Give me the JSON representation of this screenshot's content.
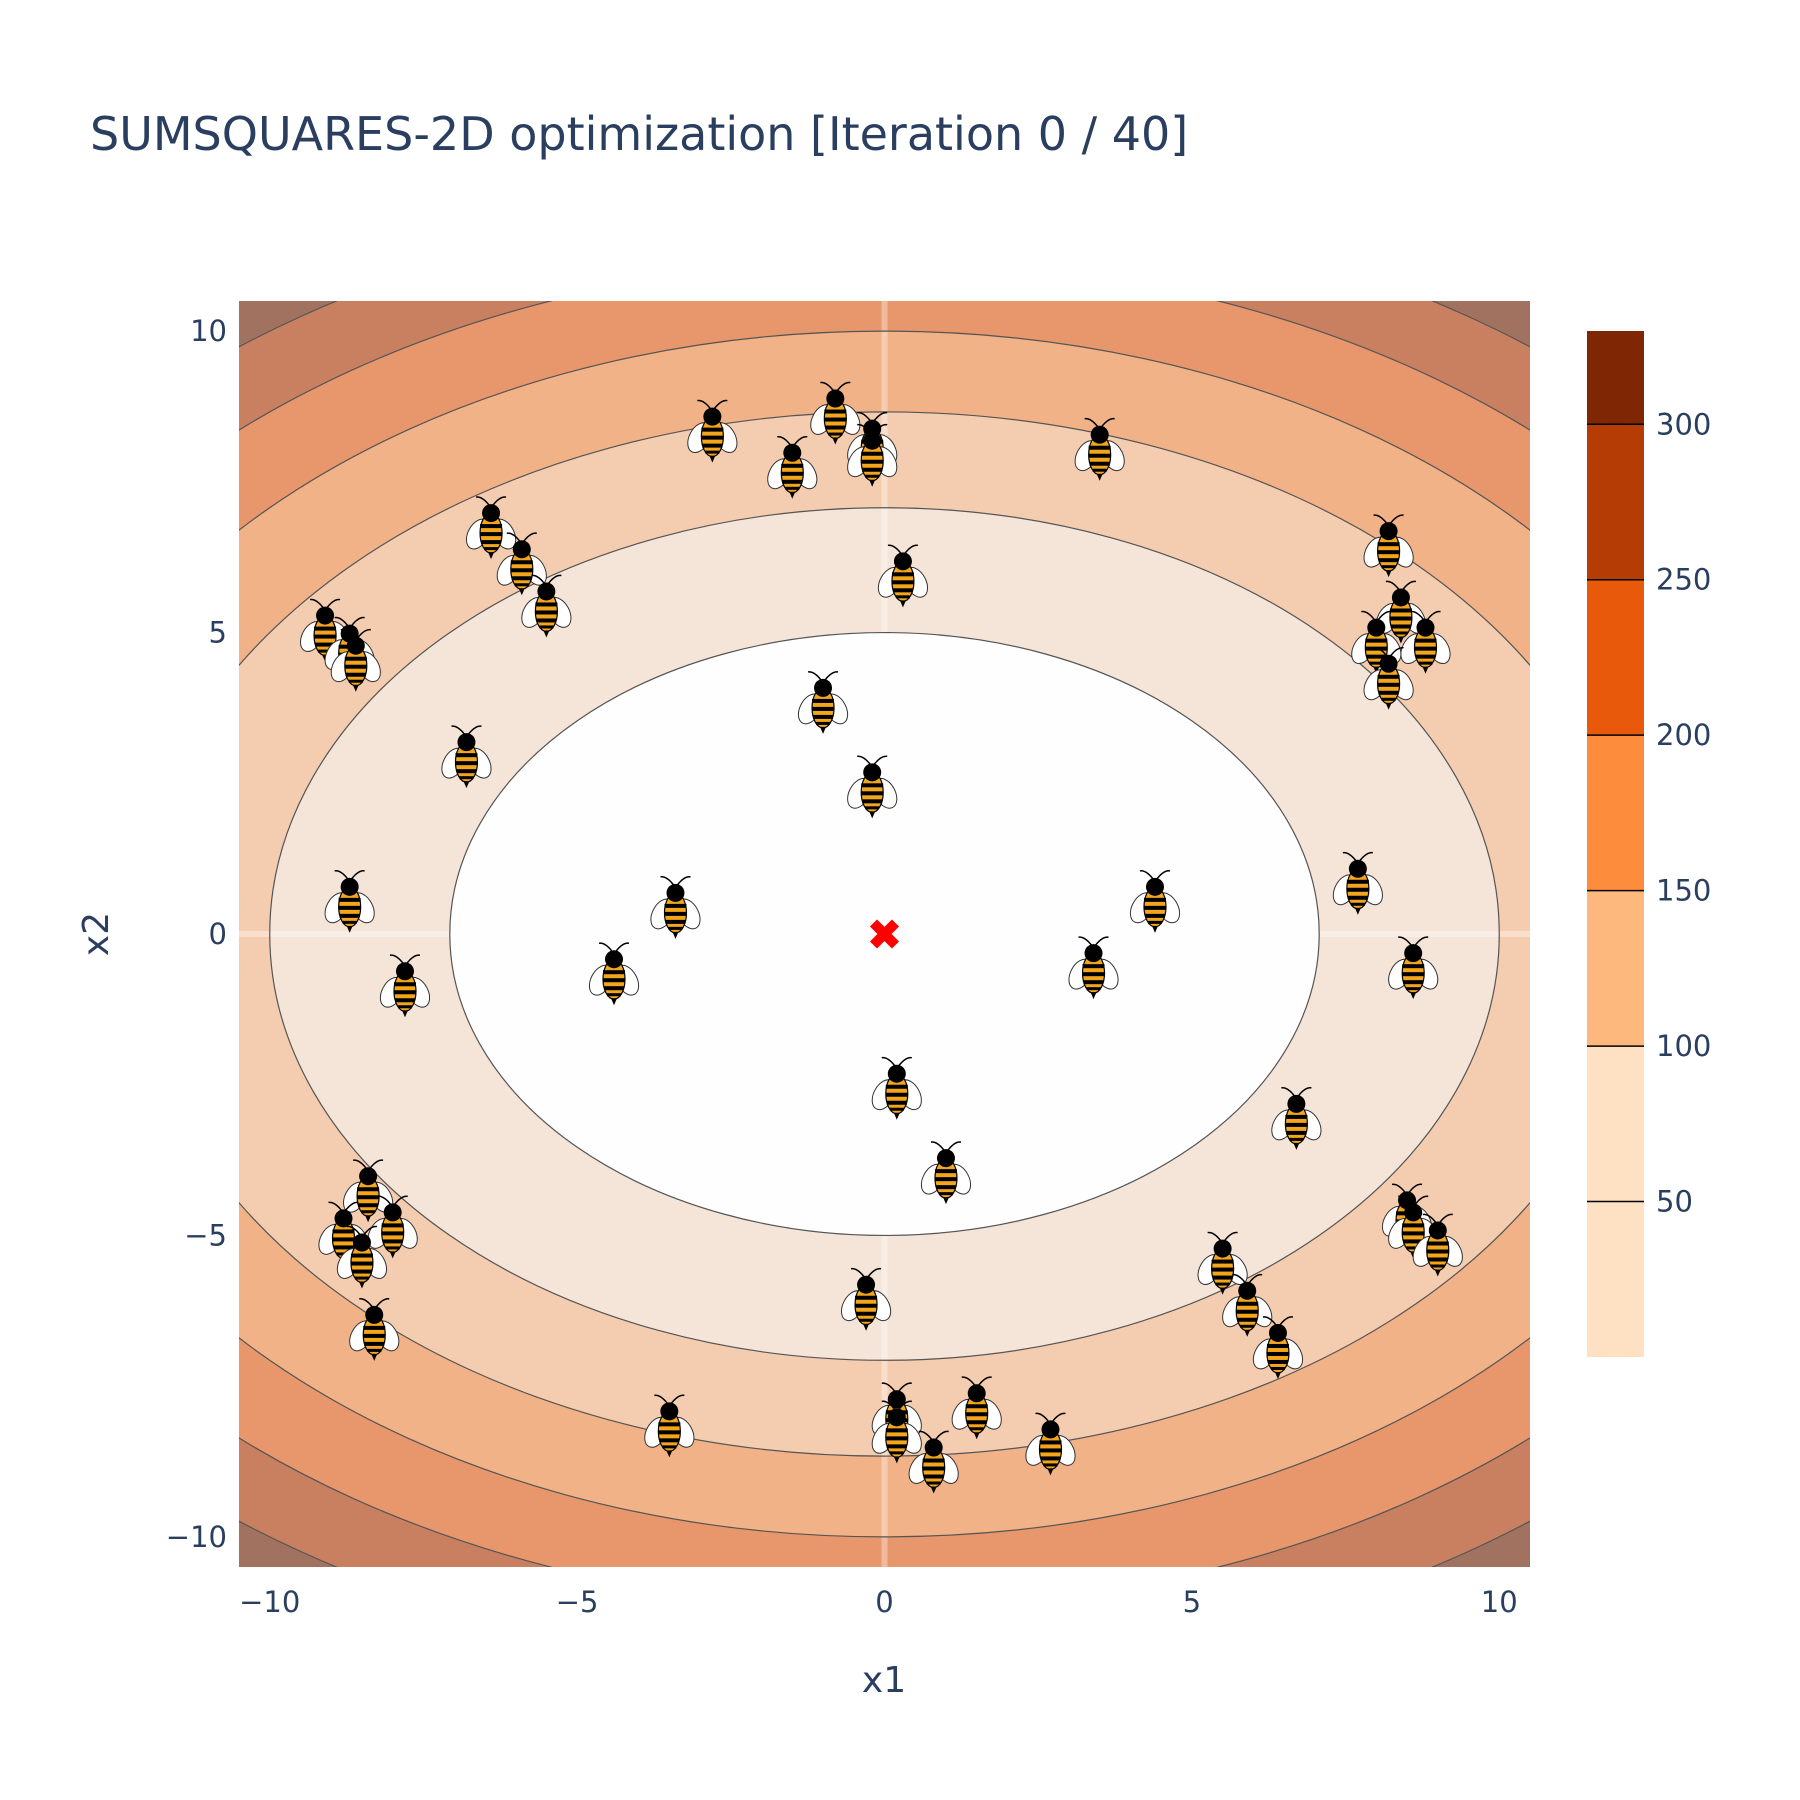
{
  "chart_data": {
    "type": "contour",
    "title": "SUMSQUARES-2D optimization [Iteration 0 / 40]",
    "xlabel": "x1",
    "ylabel": "x2",
    "xlim": [
      -10.5,
      10.5
    ],
    "ylim": [
      -10.5,
      10.5
    ],
    "x_ticks": [
      -10,
      -5,
      0,
      5,
      10
    ],
    "y_ticks": [
      -10,
      -5,
      0,
      5,
      10
    ],
    "x_tick_labels": [
      "−10",
      "−5",
      "0",
      "5",
      "10"
    ],
    "y_tick_labels": [
      "−10",
      "−5",
      "0",
      "5",
      "10"
    ],
    "function": "x1^2 + 2*x2^2",
    "contour_levels": [
      50,
      100,
      150,
      200,
      250,
      300
    ],
    "colorbar": {
      "range": [
        0,
        330
      ],
      "ticks": [
        50,
        100,
        150,
        200,
        250,
        300
      ],
      "tick_labels": [
        "50",
        "100",
        "150",
        "200",
        "250",
        "300"
      ],
      "band_colors": [
        "#fee0c2",
        "#fdb97d",
        "#fd8c3c",
        "#e8590c",
        "#b53c05",
        "#7f2704"
      ]
    },
    "fill_colors": [
      "#fefefe",
      "#f5e5d8",
      "#f4ccb0",
      "#f2b287",
      "#e7976b",
      "#c98061",
      "#a27261"
    ],
    "optimum": {
      "x": 0,
      "y": 0,
      "marker": "x-cross",
      "color": "#ff0000"
    },
    "agents": {
      "marker": "bee-icon",
      "points": [
        [
          -2.8,
          8.3
        ],
        [
          -0.8,
          8.6
        ],
        [
          -0.2,
          8.1
        ],
        [
          -0.2,
          7.9
        ],
        [
          -1.5,
          7.7
        ],
        [
          3.5,
          8.0
        ],
        [
          -6.4,
          6.7
        ],
        [
          -5.9,
          6.1
        ],
        [
          -5.5,
          5.4
        ],
        [
          0.3,
          5.9
        ],
        [
          -9.1,
          5.0
        ],
        [
          -8.7,
          4.7
        ],
        [
          -8.6,
          4.5
        ],
        [
          8.2,
          6.4
        ],
        [
          8.4,
          5.3
        ],
        [
          8.8,
          4.8
        ],
        [
          8.0,
          4.8
        ],
        [
          8.2,
          4.2
        ],
        [
          -1.0,
          3.8
        ],
        [
          -6.8,
          2.9
        ],
        [
          -0.2,
          2.4
        ],
        [
          -8.7,
          0.5
        ],
        [
          -3.4,
          0.4
        ],
        [
          4.4,
          0.5
        ],
        [
          7.7,
          0.8
        ],
        [
          -4.4,
          -0.7
        ],
        [
          3.4,
          -0.6
        ],
        [
          -7.8,
          -0.9
        ],
        [
          8.6,
          -0.6
        ],
        [
          0.2,
          -2.6
        ],
        [
          1.0,
          -4.0
        ],
        [
          6.7,
          -3.1
        ],
        [
          -8.4,
          -4.3
        ],
        [
          -8.0,
          -4.9
        ],
        [
          -8.8,
          -5.0
        ],
        [
          -8.5,
          -5.4
        ],
        [
          8.5,
          -4.7
        ],
        [
          8.6,
          -4.9
        ],
        [
          9.0,
          -5.2
        ],
        [
          5.5,
          -5.5
        ],
        [
          5.9,
          -6.2
        ],
        [
          6.4,
          -6.9
        ],
        [
          -0.3,
          -6.1
        ],
        [
          -8.3,
          -6.6
        ],
        [
          -3.5,
          -8.2
        ],
        [
          0.2,
          -8.0
        ],
        [
          0.2,
          -8.3
        ],
        [
          1.5,
          -7.9
        ],
        [
          2.7,
          -8.5
        ],
        [
          0.8,
          -8.8
        ]
      ]
    }
  }
}
